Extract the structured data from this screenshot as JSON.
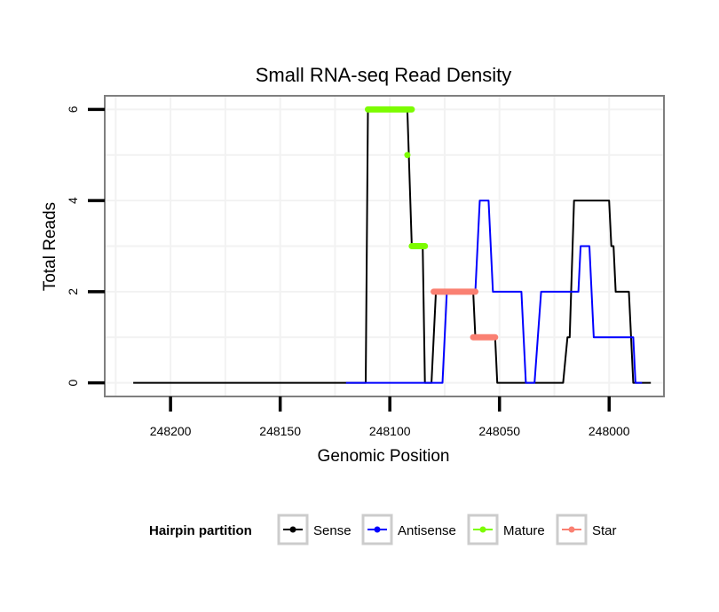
{
  "chart_data": {
    "type": "line",
    "title": "Small RNA-seq Read Density",
    "xlabel": "Genomic Position",
    "ylabel": "Total Reads",
    "xlim": [
      248230,
      247975
    ],
    "x_reversed": true,
    "ylim": [
      -0.3,
      6.3
    ],
    "xticks": [
      248200,
      248150,
      248100,
      248050,
      248000
    ],
    "xtick_labels": [
      "248200",
      "248150",
      "248100",
      "248050",
      "248000"
    ],
    "yticks": [
      0,
      2,
      4,
      6
    ],
    "ytick_labels": [
      "0",
      "2",
      "4",
      "6"
    ],
    "grid": true,
    "legend": {
      "title": "Hairpin partition",
      "position": "bottom",
      "entries": [
        {
          "label": "Sense",
          "color": "#000000"
        },
        {
          "label": "Antisense",
          "color": "#0000ff"
        },
        {
          "label": "Mature",
          "color": "#7cfc00"
        },
        {
          "label": "Star",
          "color": "#fa8072"
        }
      ]
    },
    "series": [
      {
        "name": "Sense",
        "color": "#000000",
        "style": "line",
        "points": [
          [
            248217,
            0
          ],
          [
            248111,
            0
          ],
          [
            248110,
            6
          ],
          [
            248092,
            6
          ],
          [
            248090,
            3
          ],
          [
            248085,
            3
          ],
          [
            248084,
            0
          ],
          [
            248081,
            0
          ],
          [
            248079,
            2
          ],
          [
            248062,
            2
          ],
          [
            248061,
            1
          ],
          [
            248052,
            1
          ],
          [
            248051,
            0
          ],
          [
            248021,
            0
          ],
          [
            248019,
            1
          ],
          [
            248018,
            1
          ],
          [
            248016,
            4
          ],
          [
            248000,
            4
          ],
          [
            247999,
            3
          ],
          [
            247998,
            3
          ],
          [
            247997,
            2
          ],
          [
            247991,
            2
          ],
          [
            247989,
            0
          ],
          [
            247981,
            0
          ]
        ]
      },
      {
        "name": "Antisense",
        "color": "#0000ff",
        "style": "line",
        "points": [
          [
            248120,
            0
          ],
          [
            248076,
            0
          ],
          [
            248074,
            2
          ],
          [
            248061,
            2
          ],
          [
            248059,
            4
          ],
          [
            248055,
            4
          ],
          [
            248053,
            2
          ],
          [
            248040,
            2
          ],
          [
            248038,
            0
          ],
          [
            248034,
            0
          ],
          [
            248031,
            2
          ],
          [
            248014,
            2
          ],
          [
            248013,
            3
          ],
          [
            248009,
            3
          ],
          [
            248007,
            1
          ],
          [
            247989,
            1
          ],
          [
            247988,
            0
          ],
          [
            247985,
            0
          ]
        ]
      },
      {
        "name": "Mature",
        "color": "#7cfc00",
        "style": "segments",
        "segments": [
          [
            [
              248110,
              6
            ],
            [
              248090,
              6
            ]
          ],
          [
            [
              248092,
              5
            ],
            [
              248092,
              5
            ]
          ],
          [
            [
              248090,
              3
            ],
            [
              248084,
              3
            ]
          ]
        ]
      },
      {
        "name": "Star",
        "color": "#fa8072",
        "style": "segments",
        "segments": [
          [
            [
              248080,
              2
            ],
            [
              248061,
              2
            ]
          ],
          [
            [
              248062,
              1
            ],
            [
              248052,
              1
            ]
          ]
        ]
      }
    ]
  }
}
